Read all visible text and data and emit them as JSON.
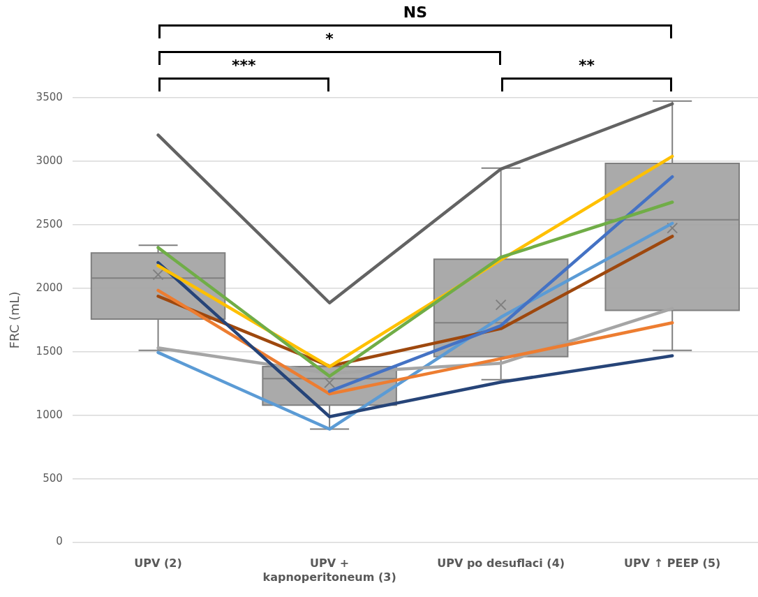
{
  "chart_data": {
    "type": "box",
    "ylabel": "FRC (mL)",
    "categories": [
      "UPV (2)",
      "UPV + kapnoperitoneum (3)",
      "UPV po desuflaci (4)",
      "UPV ↑ PEEP (5)"
    ],
    "ylim": [
      0,
      3500
    ],
    "yticks": [
      0,
      500,
      1000,
      1500,
      2000,
      2500,
      3000,
      3500
    ],
    "grid": "y",
    "legend": false,
    "marker": "none",
    "line_style": "solid",
    "color": "#a5a5a5",
    "boxes": [
      {
        "low": 1511,
        "q1": 1757,
        "median": 2080,
        "q3": 2278,
        "high": 2339,
        "mean": 2107
      },
      {
        "low": 891,
        "q1": 1079,
        "median": 1289,
        "q3": 1383,
        "high": 1387,
        "mean": 1256
      },
      {
        "low": 1280,
        "q1": 1461,
        "median": 1728,
        "q3": 2229,
        "high": 2946,
        "mean": 1869
      },
      {
        "low": 1511,
        "q1": 1826,
        "median": 2539,
        "q3": 2983,
        "high": 3474,
        "mean": 2474
      }
    ],
    "series": [
      {
        "type": "line",
        "color": "#636363",
        "values": [
          3206,
          1885,
          2939,
          3452
        ]
      },
      {
        "type": "line",
        "color": "#70ad47",
        "values": [
          2320,
          1307,
          2244,
          2678
        ]
      },
      {
        "type": "line",
        "color": "#ffc000",
        "values": [
          2178,
          1383,
          2224,
          3039
        ]
      },
      {
        "type": "line",
        "color": "#4472c4",
        "values": [
          null,
          1189,
          1706,
          2878
        ]
      },
      {
        "type": "line",
        "color": "#264478",
        "values": [
          2202,
          989,
          1261,
          1468
        ]
      },
      {
        "type": "line",
        "color": "#ed7d31",
        "values": [
          1983,
          1168,
          1446,
          1728
        ]
      },
      {
        "type": "line",
        "color": "#9e480e",
        "values": [
          1937,
          1387,
          1682,
          2409
        ]
      },
      {
        "type": "line",
        "color": "#a5a5a5",
        "values": [
          1530,
          1330,
          1409,
          1840
        ]
      },
      {
        "type": "line",
        "color": "#5b9bd5",
        "values": [
          1494,
          891,
          1772,
          2511
        ]
      }
    ],
    "annotations": [
      "NS",
      "*",
      "***",
      "**"
    ]
  }
}
